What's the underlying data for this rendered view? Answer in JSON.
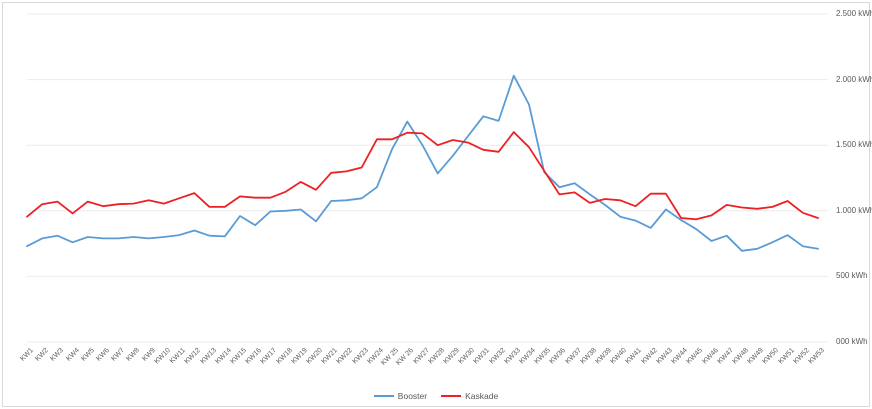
{
  "chart": {
    "y_axis": {
      "unit": "kWh",
      "side": "right",
      "tick_labels": [
        "2.500 kWh",
        "2.000 kWh",
        "1.500 kWh",
        "1.000 kWh",
        "500 kWh",
        "000 kWh"
      ],
      "tick_values": [
        2500,
        2000,
        1500,
        1000,
        500,
        0
      ]
    },
    "colors": {
      "booster": "#5b9bd5",
      "kaskade": "#ed2024",
      "gridline": "#ececec",
      "frame": "#d9d9d9",
      "label_text": "#595959"
    }
  },
  "chart_data": {
    "type": "line",
    "x": [
      "KW1",
      "KW2",
      "KW3",
      "KW4",
      "KW5",
      "KW6",
      "KW7",
      "KW8",
      "KW9",
      "KW10",
      "KW11",
      "KW12",
      "KW13",
      "KW14",
      "KW15",
      "KW16",
      "KW17",
      "KW18",
      "KW19",
      "KW20",
      "KW21",
      "KW22",
      "KW23",
      "KW24",
      "KW 25",
      "KW 26",
      "KW27",
      "KW28",
      "KW29",
      "KW30",
      "KW31",
      "KW32",
      "KW33",
      "KW34",
      "KW35",
      "KW36",
      "KW37",
      "KW38",
      "KW39",
      "KW40",
      "KW41",
      "KW42",
      "KW43",
      "KW44",
      "KW45",
      "KW46",
      "KW47",
      "KW48",
      "KW49",
      "KW50",
      "KW51",
      "KW52",
      "KW53"
    ],
    "series": [
      {
        "name": "Booster",
        "color": "#5b9bd5",
        "values": [
          730,
          790,
          810,
          760,
          800,
          790,
          790,
          800,
          790,
          800,
          815,
          850,
          810,
          805,
          960,
          890,
          995,
          1000,
          1010,
          920,
          1075,
          1080,
          1095,
          1180,
          1470,
          1680,
          1500,
          1285,
          1420,
          1570,
          1720,
          1685,
          2030,
          1810,
          1295,
          1180,
          1210,
          1125,
          1045,
          955,
          925,
          870,
          1010,
          930,
          860,
          770,
          810,
          695,
          710,
          760,
          815,
          730,
          710
        ]
      },
      {
        "name": "Kaskade",
        "color": "#ed2024",
        "values": [
          955,
          1050,
          1070,
          980,
          1070,
          1035,
          1050,
          1055,
          1080,
          1055,
          1095,
          1135,
          1030,
          1030,
          1110,
          1100,
          1100,
          1145,
          1220,
          1160,
          1290,
          1300,
          1330,
          1545,
          1545,
          1595,
          1590,
          1500,
          1540,
          1520,
          1465,
          1450,
          1600,
          1485,
          1305,
          1125,
          1140,
          1060,
          1090,
          1080,
          1035,
          1130,
          1130,
          945,
          935,
          965,
          1045,
          1025,
          1015,
          1030,
          1075,
          985,
          945
        ]
      }
    ],
    "ylim": [
      0,
      2500
    ],
    "y_step": 500,
    "grid": true,
    "legend_position": "bottom-center",
    "title": "",
    "xlabel": "",
    "ylabel": ""
  }
}
